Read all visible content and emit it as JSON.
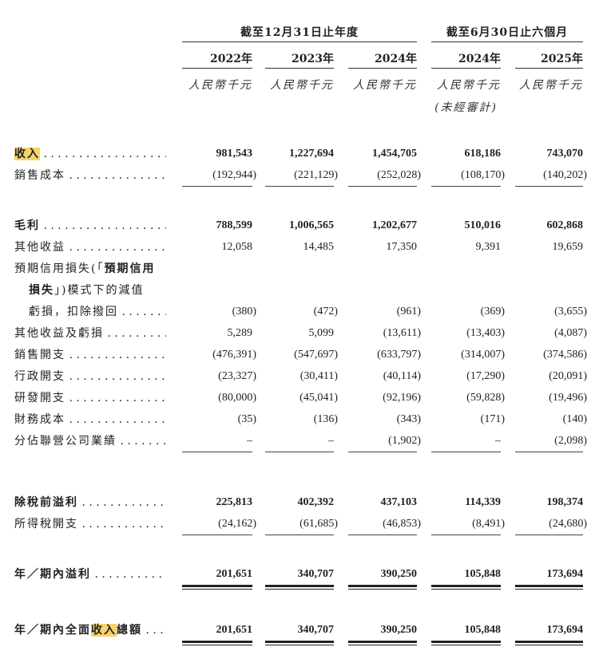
{
  "header": {
    "groups": [
      {
        "label": "截至12月31日止年度"
      },
      {
        "label": "截至6月30日止六個月"
      }
    ],
    "columns": [
      {
        "year": "2022年",
        "unit": "人民幣千元",
        "note": ""
      },
      {
        "year": "2023年",
        "unit": "人民幣千元",
        "note": ""
      },
      {
        "year": "2024年",
        "unit": "人民幣千元",
        "note": ""
      },
      {
        "year": "2024年",
        "unit": "人民幣千元",
        "note": "(未經審計)"
      },
      {
        "year": "2025年",
        "unit": "人民幣千元",
        "note": ""
      }
    ]
  },
  "rows": [
    {
      "label": [
        {
          "t": "收入",
          "b": true,
          "hl": true
        }
      ],
      "bold": true,
      "values": [
        "981,543",
        "1,227,694",
        "1,454,705",
        "618,186",
        "743,070"
      ],
      "line": ""
    },
    {
      "label": [
        {
          "t": "銷售成本"
        }
      ],
      "values": [
        "(192,944)",
        "(221,129)",
        "(252,028)",
        "(108,170)",
        "(140,202)"
      ],
      "line": "single"
    },
    {
      "label": [
        {
          "t": "毛利",
          "b": true
        }
      ],
      "bold": true,
      "values": [
        "788,599",
        "1,006,565",
        "1,202,677",
        "510,016",
        "602,868"
      ],
      "line": ""
    },
    {
      "label": [
        {
          "t": "其他收益"
        }
      ],
      "values": [
        "12,058",
        "14,485",
        "17,350",
        "9,391",
        "19,659"
      ],
      "line": ""
    },
    {
      "label": [
        {
          "t": "預期信用損失(「"
        },
        {
          "t": "預期信用",
          "b": true
        }
      ],
      "nolead": true,
      "values": [],
      "line": ""
    },
    {
      "label": [
        {
          "t": "損失",
          "b": true
        },
        {
          "t": "」)模式下的減值"
        }
      ],
      "nolead": true,
      "indent": true,
      "values": [],
      "line": ""
    },
    {
      "label": [
        {
          "t": "虧損，扣除撥回"
        }
      ],
      "indent": true,
      "values": [
        "(380)",
        "(472)",
        "(961)",
        "(369)",
        "(3,655)"
      ],
      "line": ""
    },
    {
      "label": [
        {
          "t": "其他收益及虧損"
        }
      ],
      "values": [
        "5,289",
        "5,099",
        "(13,611)",
        "(13,403)",
        "(4,087)"
      ],
      "line": ""
    },
    {
      "label": [
        {
          "t": "銷售開支"
        }
      ],
      "values": [
        "(476,391)",
        "(547,697)",
        "(633,797)",
        "(314,007)",
        "(374,586)"
      ],
      "line": ""
    },
    {
      "label": [
        {
          "t": "行政開支"
        }
      ],
      "values": [
        "(23,327)",
        "(30,411)",
        "(40,114)",
        "(17,290)",
        "(20,091)"
      ],
      "line": ""
    },
    {
      "label": [
        {
          "t": "研發開支"
        }
      ],
      "values": [
        "(80,000)",
        "(45,041)",
        "(92,196)",
        "(59,828)",
        "(19,496)"
      ],
      "line": ""
    },
    {
      "label": [
        {
          "t": "財務成本"
        }
      ],
      "values": [
        "(35)",
        "(136)",
        "(343)",
        "(171)",
        "(140)"
      ],
      "line": ""
    },
    {
      "label": [
        {
          "t": "分佔聯營公司業績"
        }
      ],
      "values": [
        "–",
        "–",
        "(1,902)",
        "–",
        "(2,098)"
      ],
      "line": "single"
    },
    {
      "label": [
        {
          "t": "除稅前溢利",
          "b": true
        }
      ],
      "bold": true,
      "values": [
        "225,813",
        "402,392",
        "437,103",
        "114,339",
        "198,374"
      ],
      "line": ""
    },
    {
      "label": [
        {
          "t": "所得稅開支"
        }
      ],
      "values": [
        "(24,162)",
        "(61,685)",
        "(46,853)",
        "(8,491)",
        "(24,680)"
      ],
      "line": "single"
    },
    {
      "label": [
        {
          "t": "年／期內溢利",
          "b": true
        }
      ],
      "bold": true,
      "values": [
        "201,651",
        "340,707",
        "390,250",
        "105,848",
        "173,694"
      ],
      "line": "double"
    },
    {
      "label": [
        {
          "t": "年／期內全面",
          "b": true
        },
        {
          "t": "收入",
          "b": true,
          "hl": true
        },
        {
          "t": "總額",
          "b": true
        }
      ],
      "bold": true,
      "values": [
        "201,651",
        "340,707",
        "390,250",
        "105,848",
        "173,694"
      ],
      "line": "double"
    }
  ]
}
